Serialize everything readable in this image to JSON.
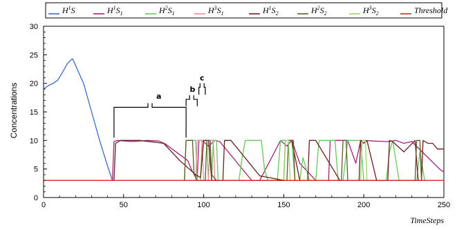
{
  "chart_data": {
    "type": "line",
    "xlabel": "TimeSteps",
    "ylabel": "Concentrations",
    "xlim": [
      0,
      250
    ],
    "ylim": [
      0,
      30
    ],
    "x_ticks": [
      "0",
      "50",
      "100",
      "150",
      "200",
      "250"
    ],
    "y_ticks": [
      "0",
      "5",
      "10",
      "15",
      "20",
      "25",
      "30"
    ],
    "grid": false,
    "legend_position": "top",
    "legend_entries": [
      {
        "main": "H",
        "sup": "1",
        "sub": "",
        "tail": "S",
        "color": "#3a6cc6"
      },
      {
        "main": "H",
        "sup": "1",
        "sub": "1",
        "tail": "S",
        "color": "#a0207a"
      },
      {
        "main": "H",
        "sup": "2",
        "sub": "1",
        "tail": "S",
        "color": "#66c85a"
      },
      {
        "main": "H",
        "sup": "3",
        "sub": "1",
        "tail": "S",
        "color": "#f08a9a"
      },
      {
        "main": "H",
        "sup": "1",
        "sub": "2",
        "tail": "S",
        "color": "#6b1c1c"
      },
      {
        "main": "H",
        "sup": "2",
        "sub": "2",
        "tail": "S",
        "color": "#5a5a2a"
      },
      {
        "main": "H",
        "sup": "3",
        "sub": "2",
        "tail": "S",
        "color": "#9ad86a"
      },
      {
        "main": "Threshold",
        "sup": "",
        "sub": "",
        "tail": "",
        "color": "#e02020"
      }
    ],
    "series": [
      {
        "name": "H1S",
        "color": "#3a6cc6",
        "points": [
          [
            0,
            19
          ],
          [
            3,
            19.6
          ],
          [
            6,
            20
          ],
          [
            9,
            20.6
          ],
          [
            12,
            22
          ],
          [
            15,
            23.5
          ],
          [
            18,
            24.3
          ],
          [
            19,
            23.8
          ],
          [
            21,
            22.5
          ],
          [
            25,
            20
          ],
          [
            30,
            15
          ],
          [
            35,
            10
          ],
          [
            40,
            5.5
          ],
          [
            43,
            3
          ]
        ]
      },
      {
        "name": "H1S1",
        "color": "#a0207a",
        "points": [
          [
            43,
            3
          ],
          [
            44,
            9.8
          ],
          [
            46,
            10
          ],
          [
            55,
            9.8
          ],
          [
            65,
            10
          ],
          [
            72,
            9.9
          ],
          [
            76,
            9.4
          ],
          [
            90,
            6.5
          ],
          [
            93,
            4.5
          ],
          [
            96,
            3.5
          ],
          [
            97,
            10
          ],
          [
            99,
            10
          ],
          [
            103,
            9
          ],
          [
            107,
            10
          ],
          [
            110,
            9.8
          ],
          [
            130,
            3
          ],
          [
            135,
            3
          ],
          [
            148,
            10
          ],
          [
            152,
            9
          ],
          [
            155,
            10
          ],
          [
            160,
            6
          ],
          [
            170,
            3
          ],
          [
            178,
            3
          ],
          [
            179,
            10
          ],
          [
            183,
            10
          ],
          [
            190,
            10
          ],
          [
            195,
            6
          ],
          [
            198,
            10
          ],
          [
            215,
            9.8
          ],
          [
            220,
            10
          ],
          [
            225,
            9.5
          ],
          [
            230,
            9.8
          ],
          [
            248,
            4.8
          ],
          [
            250,
            4.5
          ]
        ]
      },
      {
        "name": "H2S1",
        "color": "#66c85a",
        "points": [
          [
            88,
            3
          ],
          [
            89,
            10
          ],
          [
            95,
            10
          ],
          [
            96,
            3
          ],
          [
            98,
            3
          ],
          [
            99,
            10
          ],
          [
            102,
            10
          ],
          [
            103,
            3
          ],
          [
            105,
            3
          ],
          [
            106,
            10
          ],
          [
            108,
            10
          ],
          [
            109,
            3
          ],
          [
            122,
            3
          ],
          [
            124,
            7
          ],
          [
            126,
            10
          ],
          [
            136,
            10
          ],
          [
            138,
            5
          ],
          [
            140,
            3
          ],
          [
            146,
            3
          ],
          [
            148,
            10
          ],
          [
            155,
            10
          ],
          [
            157,
            3
          ],
          [
            160,
            3
          ],
          [
            162,
            7
          ],
          [
            166,
            3
          ],
          [
            170,
            3
          ],
          [
            172,
            10
          ],
          [
            182,
            10
          ],
          [
            184,
            3
          ],
          [
            187,
            3
          ],
          [
            190,
            10
          ],
          [
            198,
            10
          ],
          [
            200,
            3
          ],
          [
            214,
            3
          ],
          [
            216,
            8
          ],
          [
            218,
            10
          ],
          [
            222,
            3
          ],
          [
            225,
            3
          ],
          [
            233,
            3
          ],
          [
            235,
            8
          ],
          [
            238,
            3
          ]
        ]
      },
      {
        "name": "H3S1",
        "color": "#f08a9a",
        "points": [
          [
            95,
            3
          ],
          [
            96,
            10
          ],
          [
            99,
            10
          ],
          [
            100,
            3
          ],
          [
            103,
            3
          ],
          [
            104,
            10
          ],
          [
            106,
            10
          ],
          [
            107,
            3
          ]
        ]
      },
      {
        "name": "H1S2",
        "color": "#6b1c1c",
        "points": [
          [
            44,
            3
          ],
          [
            45,
            9.5
          ],
          [
            48,
            10
          ],
          [
            60,
            10
          ],
          [
            75,
            9.5
          ],
          [
            85,
            6.5
          ],
          [
            95,
            4
          ],
          [
            98,
            3.5
          ],
          [
            100,
            10
          ],
          [
            103,
            10
          ],
          [
            105,
            3
          ],
          [
            112,
            3
          ],
          [
            113,
            10
          ],
          [
            117,
            10
          ],
          [
            135,
            3.8
          ],
          [
            150,
            3
          ],
          [
            151,
            10
          ],
          [
            155,
            10
          ],
          [
            160,
            3
          ],
          [
            165,
            3
          ],
          [
            166,
            10
          ],
          [
            170,
            10
          ],
          [
            185,
            3
          ],
          [
            190,
            3
          ],
          [
            197,
            3
          ],
          [
            198,
            10
          ],
          [
            200,
            9.5
          ],
          [
            202,
            10
          ],
          [
            208,
            3
          ],
          [
            215,
            3
          ],
          [
            216,
            10
          ],
          [
            218,
            9.8
          ],
          [
            225,
            8
          ],
          [
            232,
            10
          ],
          [
            234,
            3
          ],
          [
            236,
            3
          ],
          [
            237,
            10
          ],
          [
            240,
            9.5
          ],
          [
            243,
            9.5
          ],
          [
            246,
            8.5
          ],
          [
            250,
            8.5
          ]
        ]
      },
      {
        "name": "H2S2",
        "color": "#5a5a2a",
        "points": [
          [
            88,
            3
          ],
          [
            89,
            10
          ],
          [
            93,
            10
          ],
          [
            94,
            4
          ],
          [
            96,
            3
          ],
          [
            101,
            3
          ],
          [
            102,
            10
          ],
          [
            104,
            10
          ],
          [
            105,
            4
          ],
          [
            108,
            3
          ],
          [
            152,
            3
          ],
          [
            153,
            10
          ],
          [
            156,
            10
          ],
          [
            157,
            3
          ],
          [
            186,
            3
          ],
          [
            187,
            10
          ],
          [
            189,
            10
          ],
          [
            190,
            3
          ],
          [
            232,
            3
          ],
          [
            233,
            10
          ],
          [
            235,
            10
          ],
          [
            236,
            3
          ]
        ]
      },
      {
        "name": "H3S2",
        "color": "#9ad86a",
        "points": [
          [
            150,
            3
          ],
          [
            151,
            10
          ],
          [
            153,
            10
          ],
          [
            154,
            3
          ],
          [
            198,
            3
          ],
          [
            199,
            10
          ],
          [
            201,
            10
          ],
          [
            202,
            3
          ]
        ]
      },
      {
        "name": "Threshold",
        "color": "#e02020",
        "points": [
          [
            0,
            3
          ],
          [
            250,
            3
          ]
        ]
      }
    ],
    "annotations": [
      {
        "label": "a",
        "x": 72,
        "y": 17.3
      },
      {
        "label": "b",
        "x": 93,
        "y": 18.5
      },
      {
        "label": "c",
        "x": 99,
        "y": 20.5
      }
    ],
    "brackets": [
      {
        "x0": 44,
        "x1": 89,
        "yBase": 10.5,
        "yTop": 15.8
      },
      {
        "x0": 89,
        "x1": 96,
        "yBase": 16,
        "yTop": 17.2
      },
      {
        "x0": 97,
        "x1": 101,
        "yBase": 18,
        "yTop": 19.3
      }
    ]
  }
}
